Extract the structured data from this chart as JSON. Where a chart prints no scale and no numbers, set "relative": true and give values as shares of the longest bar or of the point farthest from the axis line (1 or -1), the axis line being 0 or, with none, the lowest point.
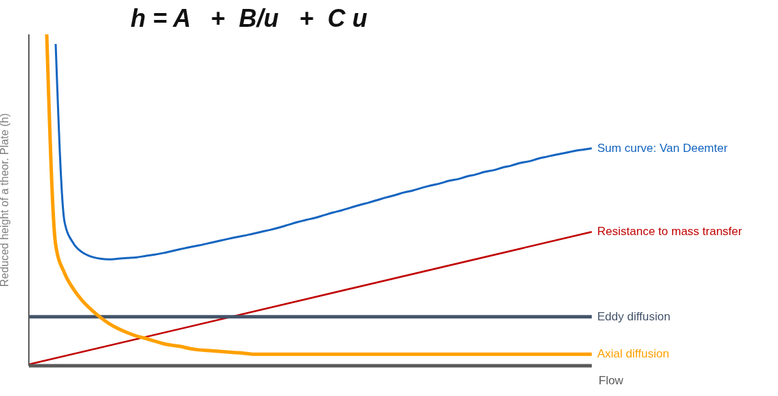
{
  "chart_data": {
    "type": "line",
    "title": "h = A   +  B/u   +  C u",
    "xlabel": "Flow",
    "ylabel": "Reduced height of a theor. Plate (h)",
    "relative": true,
    "legend": false,
    "grid": false,
    "marker": "none",
    "line_style": "solid",
    "categories": [
      null,
      null,
      null,
      null,
      null,
      null,
      null,
      null,
      null,
      null,
      null,
      null,
      null,
      null,
      null,
      null,
      null,
      null,
      null,
      null,
      null,
      null,
      null,
      null,
      null,
      null,
      null,
      null,
      null,
      null,
      null,
      null,
      null,
      null,
      null,
      null,
      null,
      null,
      null,
      null,
      null,
      null,
      null,
      null,
      null,
      null,
      null,
      null,
      null,
      null,
      null,
      null,
      null,
      null,
      null,
      null,
      null,
      null,
      null,
      null,
      null,
      null,
      null,
      null
    ],
    "series": [
      {
        "name": "Sum curve: Van Deemter",
        "color": "#1565c0",
        "values": [
          null,
          null,
          null,
          0.971,
          0.433,
          0.369,
          0.342,
          0.329,
          0.323,
          0.321,
          0.323,
          0.325,
          0.327,
          0.331,
          0.335,
          0.34,
          0.346,
          0.352,
          0.358,
          0.363,
          0.369,
          0.375,
          0.381,
          0.387,
          0.392,
          0.398,
          0.404,
          0.41,
          0.417,
          0.425,
          0.433,
          0.44,
          0.446,
          0.454,
          0.462,
          0.469,
          0.477,
          0.485,
          0.492,
          0.5,
          0.508,
          0.515,
          0.523,
          0.529,
          0.537,
          0.544,
          0.55,
          0.558,
          0.563,
          0.571,
          0.577,
          0.585,
          0.59,
          0.598,
          0.604,
          0.612,
          0.617,
          0.625,
          0.631,
          0.637,
          0.642,
          0.648,
          0.652,
          0.656
        ]
      },
      {
        "name": "Resistance to mass transfer",
        "color": "#c00000",
        "values": [
          0.004,
          null,
          null,
          null,
          null,
          null,
          null,
          null,
          null,
          null,
          null,
          null,
          null,
          null,
          null,
          null,
          null,
          null,
          null,
          null,
          null,
          null,
          null,
          null,
          null,
          null,
          null,
          null,
          null,
          null,
          null,
          null,
          null,
          null,
          null,
          null,
          null,
          null,
          null,
          null,
          null,
          null,
          null,
          null,
          null,
          null,
          null,
          null,
          null,
          null,
          null,
          null,
          null,
          null,
          null,
          null,
          null,
          null,
          null,
          null,
          null,
          null,
          null,
          0.404
        ]
      },
      {
        "name": "Eddy diffusion",
        "color": "#44546a",
        "values": [
          0.148,
          null,
          null,
          null,
          null,
          null,
          null,
          null,
          null,
          null,
          null,
          null,
          null,
          null,
          null,
          null,
          null,
          null,
          null,
          null,
          null,
          null,
          null,
          null,
          null,
          null,
          null,
          null,
          null,
          null,
          null,
          null,
          null,
          null,
          null,
          null,
          null,
          null,
          null,
          null,
          null,
          null,
          null,
          null,
          null,
          null,
          null,
          null,
          null,
          null,
          null,
          null,
          null,
          null,
          null,
          null,
          null,
          null,
          null,
          null,
          null,
          null,
          null,
          0.148
        ]
      },
      {
        "name": "Axial diffusion",
        "color": "#ffa000",
        "values": [
          null,
          null,
          1.0,
          0.365,
          0.279,
          0.231,
          0.196,
          0.169,
          0.146,
          0.127,
          0.112,
          0.1,
          0.09,
          0.083,
          0.075,
          0.067,
          0.062,
          0.058,
          0.052,
          0.048,
          0.046,
          0.044,
          0.042,
          0.04,
          0.038,
          0.035,
          0.035,
          0.035,
          0.035,
          0.035,
          0.035,
          0.035,
          0.035,
          0.035,
          0.035,
          0.035,
          0.035,
          0.035,
          0.035,
          0.035,
          0.035,
          0.035,
          0.035,
          0.035,
          0.035,
          0.035,
          0.035,
          0.035,
          0.035,
          0.035,
          0.035,
          0.035,
          0.035,
          0.035,
          0.035,
          0.035,
          0.035,
          0.035,
          0.035,
          0.035,
          0.035,
          0.035,
          0.035,
          0.035
        ]
      }
    ]
  }
}
